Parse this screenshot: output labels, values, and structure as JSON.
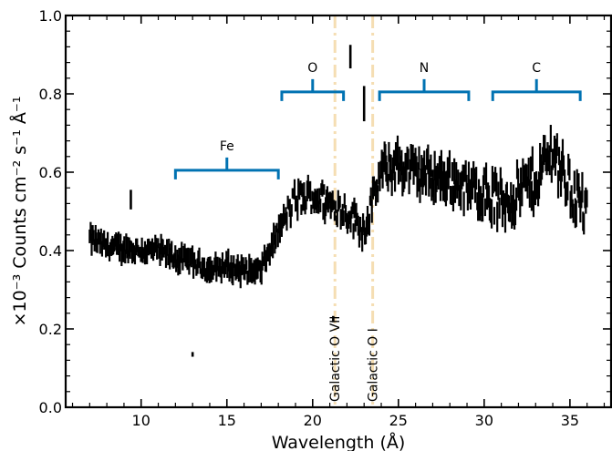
{
  "chart_data": {
    "type": "scatter",
    "xlabel": "Wavelength (Å)",
    "ylabel": "×10⁻³ Counts cm⁻² s⁻¹ Å⁻¹",
    "xlim": [
      5.6,
      37.4
    ],
    "ylim": [
      0.0,
      1.0
    ],
    "xticks": [
      10,
      15,
      20,
      25,
      30,
      35
    ],
    "yticks": [
      0.0,
      0.2,
      0.4,
      0.6,
      0.8,
      1.0
    ],
    "ytick_labels": [
      "0.0",
      "0.2",
      "0.4",
      "0.6",
      "0.8",
      "1.0"
    ],
    "grid": false,
    "marker": "vertical error bars",
    "series_color": "#000000",
    "sample_points": [
      {
        "x": 7.0,
        "y": 0.43
      },
      {
        "x": 8.0,
        "y": 0.41
      },
      {
        "x": 9.0,
        "y": 0.405
      },
      {
        "x": 10.0,
        "y": 0.4
      },
      {
        "x": 11.0,
        "y": 0.4
      },
      {
        "x": 12.0,
        "y": 0.38
      },
      {
        "x": 13.0,
        "y": 0.37
      },
      {
        "x": 14.0,
        "y": 0.35
      },
      {
        "x": 15.0,
        "y": 0.36
      },
      {
        "x": 16.0,
        "y": 0.35
      },
      {
        "x": 17.0,
        "y": 0.35
      },
      {
        "x": 18.0,
        "y": 0.45
      },
      {
        "x": 19.0,
        "y": 0.53
      },
      {
        "x": 20.0,
        "y": 0.54
      },
      {
        "x": 21.0,
        "y": 0.52
      },
      {
        "x": 22.0,
        "y": 0.5
      },
      {
        "x": 23.0,
        "y": 0.45
      },
      {
        "x": 24.0,
        "y": 0.6
      },
      {
        "x": 25.0,
        "y": 0.62
      },
      {
        "x": 26.0,
        "y": 0.6
      },
      {
        "x": 27.0,
        "y": 0.59
      },
      {
        "x": 28.0,
        "y": 0.58
      },
      {
        "x": 29.0,
        "y": 0.56
      },
      {
        "x": 30.0,
        "y": 0.55
      },
      {
        "x": 31.0,
        "y": 0.52
      },
      {
        "x": 32.0,
        "y": 0.55
      },
      {
        "x": 33.0,
        "y": 0.58
      },
      {
        "x": 34.0,
        "y": 0.66
      },
      {
        "x": 35.0,
        "y": 0.56
      },
      {
        "x": 36.0,
        "y": 0.5
      }
    ],
    "outliers": [
      {
        "x": 9.4,
        "y": 0.53,
        "err": 0.025
      },
      {
        "x": 13.0,
        "y": 0.135,
        "err": 0.006
      },
      {
        "x": 21.2,
        "y": 0.225,
        "err": 0.008
      },
      {
        "x": 22.2,
        "y": 0.895,
        "err": 0.03
      },
      {
        "x": 23.0,
        "y": 0.775,
        "err": 0.045
      }
    ],
    "brackets": [
      {
        "label": "Fe",
        "x0": 12.0,
        "x1": 18.0,
        "y": 0.605,
        "color": "#0072b2"
      },
      {
        "label": "O",
        "x0": 18.2,
        "x1": 21.8,
        "y": 0.805,
        "color": "#0072b2"
      },
      {
        "label": "N",
        "x0": 23.9,
        "x1": 29.1,
        "y": 0.805,
        "color": "#0072b2"
      },
      {
        "label": "C",
        "x0": 30.5,
        "x1": 35.6,
        "y": 0.805,
        "color": "#0072b2"
      }
    ],
    "vlines": [
      {
        "label": "Galactic O VII",
        "x": 21.3,
        "color": "#f5deb3",
        "style": "dashdot"
      },
      {
        "label": "Galactic O I",
        "x": 23.5,
        "color": "#f5deb3",
        "style": "dashdot"
      }
    ]
  }
}
